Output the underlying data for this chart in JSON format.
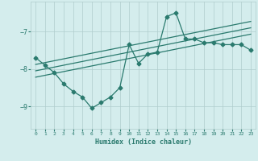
{
  "x": [
    0,
    1,
    2,
    3,
    4,
    5,
    6,
    7,
    8,
    9,
    10,
    11,
    12,
    13,
    14,
    15,
    16,
    17,
    18,
    19,
    20,
    21,
    22,
    23
  ],
  "y_main": [
    -7.7,
    -7.9,
    -8.1,
    -8.4,
    -8.6,
    -8.75,
    -9.05,
    -8.9,
    -8.75,
    -8.5,
    -7.35,
    -7.85,
    -7.6,
    -7.55,
    -6.6,
    -6.5,
    -7.2,
    -7.2,
    -7.3,
    -7.3,
    -7.35,
    -7.35,
    -7.35,
    -7.5
  ],
  "trend_mid": [
    -8.05,
    -8.0,
    -7.95,
    -7.9,
    -7.85,
    -7.8,
    -7.75,
    -7.7,
    -7.65,
    -7.6,
    -7.55,
    -7.5,
    -7.45,
    -7.4,
    -7.35,
    -7.3,
    -7.25,
    -7.2,
    -7.15,
    -7.1,
    -7.05,
    -7.0,
    -6.95,
    -6.9
  ],
  "trend_upper": [
    -7.88,
    -7.83,
    -7.78,
    -7.73,
    -7.68,
    -7.63,
    -7.58,
    -7.53,
    -7.48,
    -7.43,
    -7.38,
    -7.33,
    -7.28,
    -7.23,
    -7.18,
    -7.13,
    -7.08,
    -7.03,
    -6.98,
    -6.93,
    -6.88,
    -6.83,
    -6.78,
    -6.73
  ],
  "trend_lower": [
    -8.22,
    -8.17,
    -8.12,
    -8.07,
    -8.02,
    -7.97,
    -7.92,
    -7.87,
    -7.82,
    -7.77,
    -7.72,
    -7.67,
    -7.62,
    -7.57,
    -7.52,
    -7.47,
    -7.42,
    -7.37,
    -7.32,
    -7.27,
    -7.22,
    -7.17,
    -7.12,
    -7.07
  ],
  "bg_color": "#d4eded",
  "line_color": "#2a7a6e",
  "grid_color": "#b0cccc",
  "xlabel": "Humidex (Indice chaleur)",
  "ylim": [
    -9.6,
    -6.2
  ],
  "xlim": [
    -0.5,
    23.5
  ],
  "yticks": [
    -9,
    -8,
    -7
  ],
  "xticks": [
    0,
    1,
    2,
    3,
    4,
    5,
    6,
    7,
    8,
    9,
    10,
    11,
    12,
    13,
    14,
    15,
    16,
    17,
    18,
    19,
    20,
    21,
    22,
    23
  ],
  "marker": "D",
  "markersize": 2.5,
  "linewidth": 0.9
}
